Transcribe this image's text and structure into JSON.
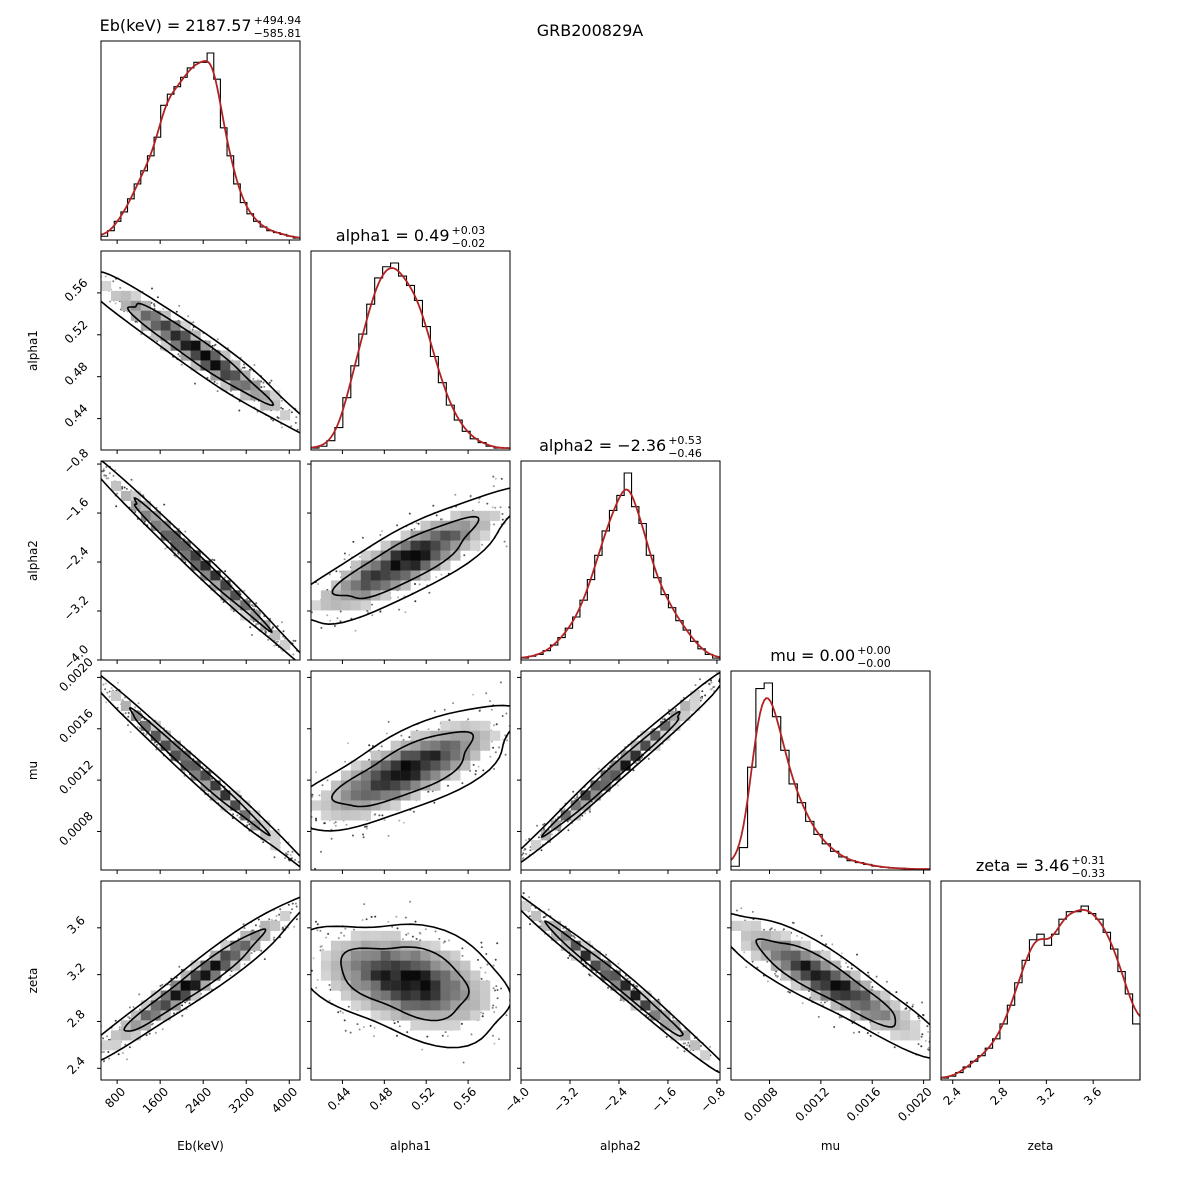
{
  "figure": {
    "title": "GRB200829A"
  },
  "colors": {
    "histogram": "#000000",
    "kde": "#b22222",
    "density_dark": "#000000",
    "density_light": "#f2f2f2",
    "axes": "#000000",
    "background": "#ffffff"
  },
  "chart_data": {
    "type": "corner",
    "parameters": [
      {
        "name": "Eb(keV)",
        "axis_label": "Eb(keV)",
        "title_main": "Eb(keV) = 2187.57",
        "title_sup": "+494.94",
        "title_sub": "−585.81",
        "range": [
          500,
          4200
        ],
        "ticks": [
          800,
          1600,
          2400,
          3200,
          4000
        ],
        "tick_labels": [
          "800",
          "1600",
          "2400",
          "3200",
          "4000"
        ],
        "median": 2187.57,
        "err_plus": 494.94,
        "err_minus": 585.81
      },
      {
        "name": "alpha1",
        "axis_label": "alpha1",
        "title_main": "alpha1 = 0.49",
        "title_sup": "+0.03",
        "title_sub": "−0.02",
        "range": [
          0.41,
          0.6
        ],
        "ticks": [
          0.44,
          0.48,
          0.52,
          0.56
        ],
        "tick_labels": [
          "0.44",
          "0.48",
          "0.52",
          "0.56"
        ],
        "median": 0.49,
        "err_plus": 0.03,
        "err_minus": 0.02
      },
      {
        "name": "alpha2",
        "axis_label": "alpha2",
        "title_main": "alpha2 = −2.36",
        "title_sup": "+0.53",
        "title_sub": "−0.46",
        "range": [
          -4.0,
          -0.75
        ],
        "ticks": [
          -4.0,
          -3.2,
          -2.4,
          -1.6,
          -0.8
        ],
        "tick_labels": [
          "−4.0",
          "−3.2",
          "−2.4",
          "−1.6",
          "−0.8"
        ],
        "median": -2.36,
        "err_plus": 0.53,
        "err_minus": 0.46
      },
      {
        "name": "mu",
        "axis_label": "mu",
        "title_main": "mu = 0.00",
        "title_sup": "+0.00",
        "title_sub": "−0.00",
        "range": [
          0.0005,
          0.00205
        ],
        "ticks": [
          0.0008,
          0.0012,
          0.0016,
          0.002
        ],
        "tick_labels": [
          "0.0008",
          "0.0012",
          "0.0016",
          "0.0020"
        ],
        "median": 0.0009,
        "err_plus": 0.0001,
        "err_minus": 0.0001
      },
      {
        "name": "zeta",
        "axis_label": "zeta",
        "title_main": "zeta = 3.46",
        "title_sup": "+0.31",
        "title_sub": "−0.33",
        "range": [
          2.3,
          4.0
        ],
        "ticks": [
          2.4,
          2.8,
          3.2,
          3.6
        ],
        "tick_labels": [
          "2.4",
          "2.8",
          "3.2",
          "3.6"
        ],
        "median": 3.46,
        "err_plus": 0.31,
        "err_minus": 0.33
      }
    ],
    "marginal_histograms": [
      [
        0.02,
        0.05,
        0.1,
        0.15,
        0.22,
        0.3,
        0.37,
        0.45,
        0.55,
        0.72,
        0.78,
        0.82,
        0.87,
        0.92,
        0.95,
        0.95,
        1.0,
        0.86,
        0.6,
        0.45,
        0.3,
        0.2,
        0.14,
        0.1,
        0.07,
        0.05,
        0.04,
        0.03,
        0.02,
        0.01
      ],
      [
        0.01,
        0.02,
        0.05,
        0.12,
        0.28,
        0.45,
        0.62,
        0.78,
        0.92,
        0.98,
        1.0,
        0.93,
        0.88,
        0.8,
        0.66,
        0.5,
        0.36,
        0.24,
        0.16,
        0.1,
        0.06,
        0.04,
        0.02,
        0.01,
        0.01
      ],
      [
        0.01,
        0.02,
        0.03,
        0.05,
        0.08,
        0.12,
        0.17,
        0.23,
        0.32,
        0.43,
        0.56,
        0.69,
        0.8,
        0.88,
        1.0,
        0.82,
        0.73,
        0.56,
        0.44,
        0.35,
        0.28,
        0.21,
        0.16,
        0.1,
        0.06,
        0.03,
        0.01
      ],
      [
        0.02,
        0.12,
        0.55,
        0.97,
        1.0,
        0.82,
        0.64,
        0.46,
        0.36,
        0.26,
        0.19,
        0.14,
        0.1,
        0.07,
        0.05,
        0.04,
        0.03,
        0.02,
        0.015,
        0.01,
        0.01,
        0.005,
        0.005,
        0.005
      ],
      [
        0.01,
        0.02,
        0.04,
        0.07,
        0.1,
        0.13,
        0.17,
        0.22,
        0.3,
        0.4,
        0.52,
        0.64,
        0.75,
        0.78,
        0.72,
        0.78,
        0.86,
        0.9,
        0.9,
        0.93,
        0.89,
        0.86,
        0.79,
        0.7,
        0.58,
        0.46,
        0.3
      ]
    ],
    "correlations": {
      "1,0": -0.78,
      "2,0": -0.97,
      "2,1": 0.62,
      "3,0": -0.93,
      "3,1": 0.55,
      "3,2": 0.93,
      "4,0": 0.8,
      "4,1": -0.35,
      "4,2": -0.88,
      "4,3": -0.68
    },
    "grid": false,
    "legend": "none"
  }
}
